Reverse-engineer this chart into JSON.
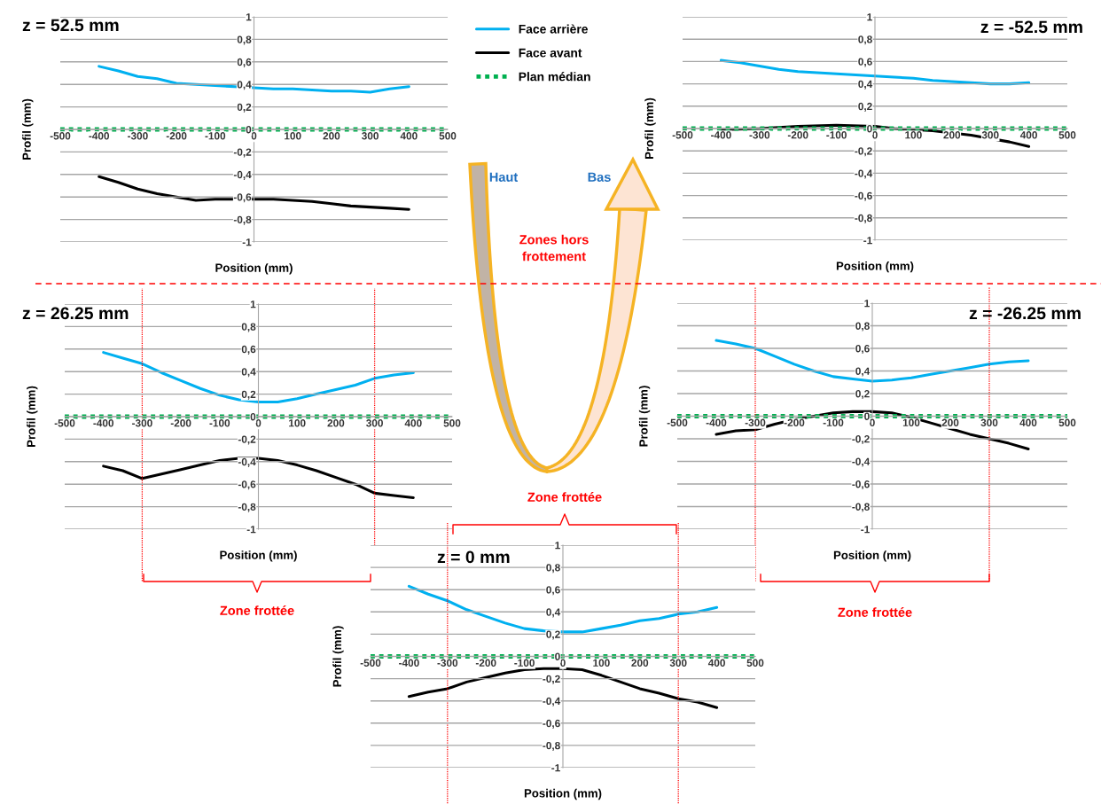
{
  "chart_data": [
    {
      "type": "line",
      "title": "z = 52.5 mm",
      "xlabel": "Position (mm)",
      "ylabel": "Profil (mm)",
      "xlim": [
        -500,
        500
      ],
      "ylim": [
        -1,
        1
      ],
      "xticks": [
        -500,
        -400,
        -300,
        -200,
        -100,
        0,
        100,
        200,
        300,
        400,
        500
      ],
      "yticks": [
        -1,
        {
          "value": -0.8,
          "label": "-0,8"
        },
        {
          "value": -0.6,
          "label": "-0,6"
        },
        {
          "value": -0.4,
          "label": "-0,4"
        },
        {
          "value": -0.2,
          "label": "-0,2"
        },
        0,
        {
          "value": 0.2,
          "label": "0,2"
        },
        {
          "value": 0.4,
          "label": "0,4"
        },
        {
          "value": 0.6,
          "label": "0,6"
        },
        {
          "value": 0.8,
          "label": "0,8"
        },
        1
      ],
      "grid": "y",
      "legend": "right",
      "x": [
        -400,
        -350,
        -300,
        -250,
        -200,
        -150,
        -100,
        -50,
        0,
        50,
        100,
        150,
        200,
        250,
        300,
        350,
        400
      ],
      "series": [
        {
          "name": "Face arrière",
          "color": "#00b0f0",
          "values": [
            0.56,
            0.52,
            0.47,
            0.45,
            0.41,
            0.4,
            0.39,
            0.38,
            0.37,
            0.36,
            0.36,
            0.35,
            0.34,
            0.34,
            0.33,
            0.36,
            0.38
          ]
        },
        {
          "name": "Face avant",
          "color": "#000000",
          "values": [
            -0.42,
            -0.47,
            -0.53,
            -0.57,
            -0.6,
            -0.63,
            -0.62,
            -0.62,
            -0.62,
            -0.62,
            -0.63,
            -0.64,
            -0.66,
            -0.68,
            -0.69,
            -0.7,
            -0.71
          ]
        },
        {
          "name": "Plan médian",
          "color": "#00b050",
          "line_style": "dotted",
          "x": [
            -500,
            500
          ],
          "values": [
            0,
            0
          ]
        }
      ]
    },
    {
      "type": "line",
      "title": "z = -52.5 mm",
      "xlabel": "Position (mm)",
      "ylabel": "Profil (mm)",
      "xlim": [
        -500,
        500
      ],
      "ylim": [
        -1,
        1
      ],
      "xticks": [
        -500,
        -400,
        -300,
        -200,
        -100,
        0,
        100,
        200,
        300,
        400,
        500
      ],
      "yticks": [
        -1,
        {
          "value": -0.8,
          "label": "-0,8"
        },
        {
          "value": -0.6,
          "label": "-0,6"
        },
        {
          "value": -0.4,
          "label": "-0,4"
        },
        {
          "value": -0.2,
          "label": "-0,2"
        },
        0,
        {
          "value": 0.2,
          "label": "0,2"
        },
        {
          "value": 0.4,
          "label": "0,4"
        },
        {
          "value": 0.6,
          "label": "0,6"
        },
        {
          "value": 0.8,
          "label": "0,8"
        },
        1
      ],
      "grid": "y",
      "series": [
        {
          "color": "#00b0f0",
          "x": [
            -400,
            -350,
            -300,
            -250,
            -200,
            -150,
            -100,
            -50,
            0,
            50,
            100,
            150,
            200,
            250,
            300,
            350,
            400
          ],
          "values": [
            0.61,
            0.59,
            0.56,
            0.53,
            0.51,
            0.5,
            0.49,
            0.48,
            0.47,
            0.46,
            0.45,
            0.43,
            0.42,
            0.41,
            0.4,
            0.4,
            0.41
          ]
        },
        {
          "color": "#000000",
          "x": [
            -400,
            -300,
            -200,
            -100,
            0,
            50,
            100,
            150,
            250,
            350,
            400
          ],
          "values": [
            -0.01,
            0.0,
            0.02,
            0.03,
            0.02,
            0.0,
            -0.01,
            -0.02,
            -0.06,
            -0.12,
            -0.16
          ]
        },
        {
          "color": "#00b050",
          "line_style": "dotted",
          "x": [
            -500,
            500
          ],
          "values": [
            0,
            0
          ]
        }
      ]
    },
    {
      "type": "line",
      "title": "z = 26.25 mm",
      "xlabel": "Position (mm)",
      "ylabel": "Profil (mm)",
      "xlim": [
        -500,
        500
      ],
      "ylim": [
        -1,
        1
      ],
      "xticks": [
        -500,
        -400,
        -300,
        -200,
        -100,
        0,
        100,
        200,
        300,
        400,
        500
      ],
      "yticks": [
        -1,
        {
          "value": -0.8,
          "label": "-0,8"
        },
        {
          "value": -0.6,
          "label": "-0,6"
        },
        {
          "value": -0.4,
          "label": "-0,4"
        },
        {
          "value": -0.2,
          "label": "-0,2"
        },
        0,
        {
          "value": 0.2,
          "label": "0,2"
        },
        {
          "value": 0.4,
          "label": "0,4"
        },
        {
          "value": 0.6,
          "label": "0,6"
        },
        {
          "value": 0.8,
          "label": "0,8"
        },
        1
      ],
      "grid": "y",
      "ref_lines": [
        {
          "axis": "x",
          "value": -300,
          "color": "#ff0000",
          "line_style": "dotted"
        },
        {
          "axis": "x",
          "value": 300,
          "color": "#ff0000",
          "line_style": "dotted"
        }
      ],
      "annotations": [
        "Zone frottée"
      ],
      "x": [
        -400,
        -350,
        -300,
        -250,
        -200,
        -150,
        -100,
        -50,
        0,
        50,
        100,
        150,
        200,
        250,
        300,
        350,
        400
      ],
      "series": [
        {
          "color": "#00b0f0",
          "values": [
            0.57,
            0.52,
            0.47,
            0.39,
            0.32,
            0.25,
            0.19,
            0.15,
            0.13,
            0.13,
            0.16,
            0.2,
            0.24,
            0.28,
            0.34,
            0.37,
            0.39
          ]
        },
        {
          "color": "#000000",
          "values": [
            -0.44,
            -0.48,
            -0.55,
            -0.51,
            -0.47,
            -0.43,
            -0.39,
            -0.37,
            -0.37,
            -0.39,
            -0.43,
            -0.48,
            -0.54,
            -0.6,
            -0.68,
            -0.7,
            -0.72
          ]
        },
        {
          "color": "#00b050",
          "line_style": "dotted",
          "x": [
            -500,
            500
          ],
          "values": [
            0,
            0
          ]
        }
      ]
    },
    {
      "type": "line",
      "title": "z = -26.25 mm",
      "xlabel": "Position (mm)",
      "ylabel": "Profil (mm)",
      "xlim": [
        -500,
        500
      ],
      "ylim": [
        -1,
        1
      ],
      "xticks": [
        -500,
        -400,
        -300,
        -200,
        -100,
        0,
        100,
        200,
        300,
        400,
        500
      ],
      "yticks": [
        -1,
        {
          "value": -0.8,
          "label": "-0,8"
        },
        {
          "value": -0.6,
          "label": "-0,6"
        },
        {
          "value": -0.4,
          "label": "-0,4"
        },
        {
          "value": -0.2,
          "label": "-0,2"
        },
        0,
        {
          "value": 0.2,
          "label": "0,2"
        },
        {
          "value": 0.4,
          "label": "0,4"
        },
        {
          "value": 0.6,
          "label": "0,6"
        },
        {
          "value": 0.8,
          "label": "0,8"
        },
        1
      ],
      "grid": "y",
      "ref_lines": [
        {
          "axis": "x",
          "value": -300,
          "color": "#ff0000",
          "line_style": "dotted"
        },
        {
          "axis": "x",
          "value": 300,
          "color": "#ff0000",
          "line_style": "dotted"
        }
      ],
      "annotations": [
        "Zone frottée"
      ],
      "x": [
        -400,
        -350,
        -300,
        -250,
        -200,
        -150,
        -100,
        -50,
        0,
        50,
        100,
        150,
        200,
        250,
        300,
        350,
        400
      ],
      "series": [
        {
          "color": "#00b0f0",
          "values": [
            0.67,
            0.64,
            0.6,
            0.53,
            0.46,
            0.4,
            0.35,
            0.33,
            0.31,
            0.32,
            0.34,
            0.37,
            0.4,
            0.43,
            0.46,
            0.48,
            0.49
          ]
        },
        {
          "color": "#000000",
          "values": [
            -0.16,
            -0.13,
            -0.12,
            -0.07,
            -0.03,
            0.0,
            0.03,
            0.04,
            0.04,
            0.03,
            -0.01,
            -0.06,
            -0.11,
            -0.16,
            -0.2,
            -0.24,
            -0.29
          ]
        },
        {
          "color": "#00b050",
          "line_style": "dotted",
          "x": [
            -500,
            500
          ],
          "values": [
            0,
            0
          ]
        }
      ]
    },
    {
      "type": "line",
      "title": "z = 0 mm",
      "xlabel": "Position (mm)",
      "ylabel": "Profil (mm)",
      "xlim": [
        -500,
        500
      ],
      "ylim": [
        -1,
        1
      ],
      "xticks": [
        -500,
        -400,
        -300,
        -200,
        -100,
        0,
        100,
        200,
        300,
        400,
        500
      ],
      "yticks": [
        -1,
        {
          "value": -0.8,
          "label": "-0,8"
        },
        {
          "value": -0.6,
          "label": "-0,6"
        },
        {
          "value": -0.4,
          "label": "-0,4"
        },
        {
          "value": -0.2,
          "label": "-0,2"
        },
        0,
        {
          "value": 0.2,
          "label": "0,2"
        },
        {
          "value": 0.4,
          "label": "0,4"
        },
        {
          "value": 0.6,
          "label": "0,6"
        },
        {
          "value": 0.8,
          "label": "0,8"
        },
        1
      ],
      "grid": "y",
      "ref_lines": [
        {
          "axis": "x",
          "value": -300,
          "color": "#ff0000",
          "line_style": "dotted"
        },
        {
          "axis": "x",
          "value": 300,
          "color": "#ff0000",
          "line_style": "dotted"
        }
      ],
      "annotations": [
        "Zone frottée"
      ],
      "x": [
        -400,
        -350,
        -300,
        -250,
        -200,
        -150,
        -100,
        -50,
        0,
        50,
        100,
        150,
        200,
        250,
        300,
        350,
        400
      ],
      "series": [
        {
          "color": "#00b0f0",
          "values": [
            0.63,
            0.56,
            0.5,
            0.42,
            0.36,
            0.3,
            0.25,
            0.23,
            0.22,
            0.22,
            0.25,
            0.28,
            0.32,
            0.34,
            0.38,
            0.4,
            0.44
          ]
        },
        {
          "color": "#000000",
          "values": [
            -0.36,
            -0.32,
            -0.29,
            -0.23,
            -0.19,
            -0.15,
            -0.12,
            -0.11,
            -0.11,
            -0.12,
            -0.17,
            -0.23,
            -0.29,
            -0.33,
            -0.38,
            -0.41,
            -0.46
          ]
        },
        {
          "color": "#00b050",
          "line_style": "dotted",
          "x": [
            -500,
            500
          ],
          "values": [
            0,
            0
          ]
        }
      ]
    },
    {
      "type": "other",
      "annotations": [
        "Haut",
        "Bas",
        "Zones hors\nfrottement"
      ]
    }
  ]
}
